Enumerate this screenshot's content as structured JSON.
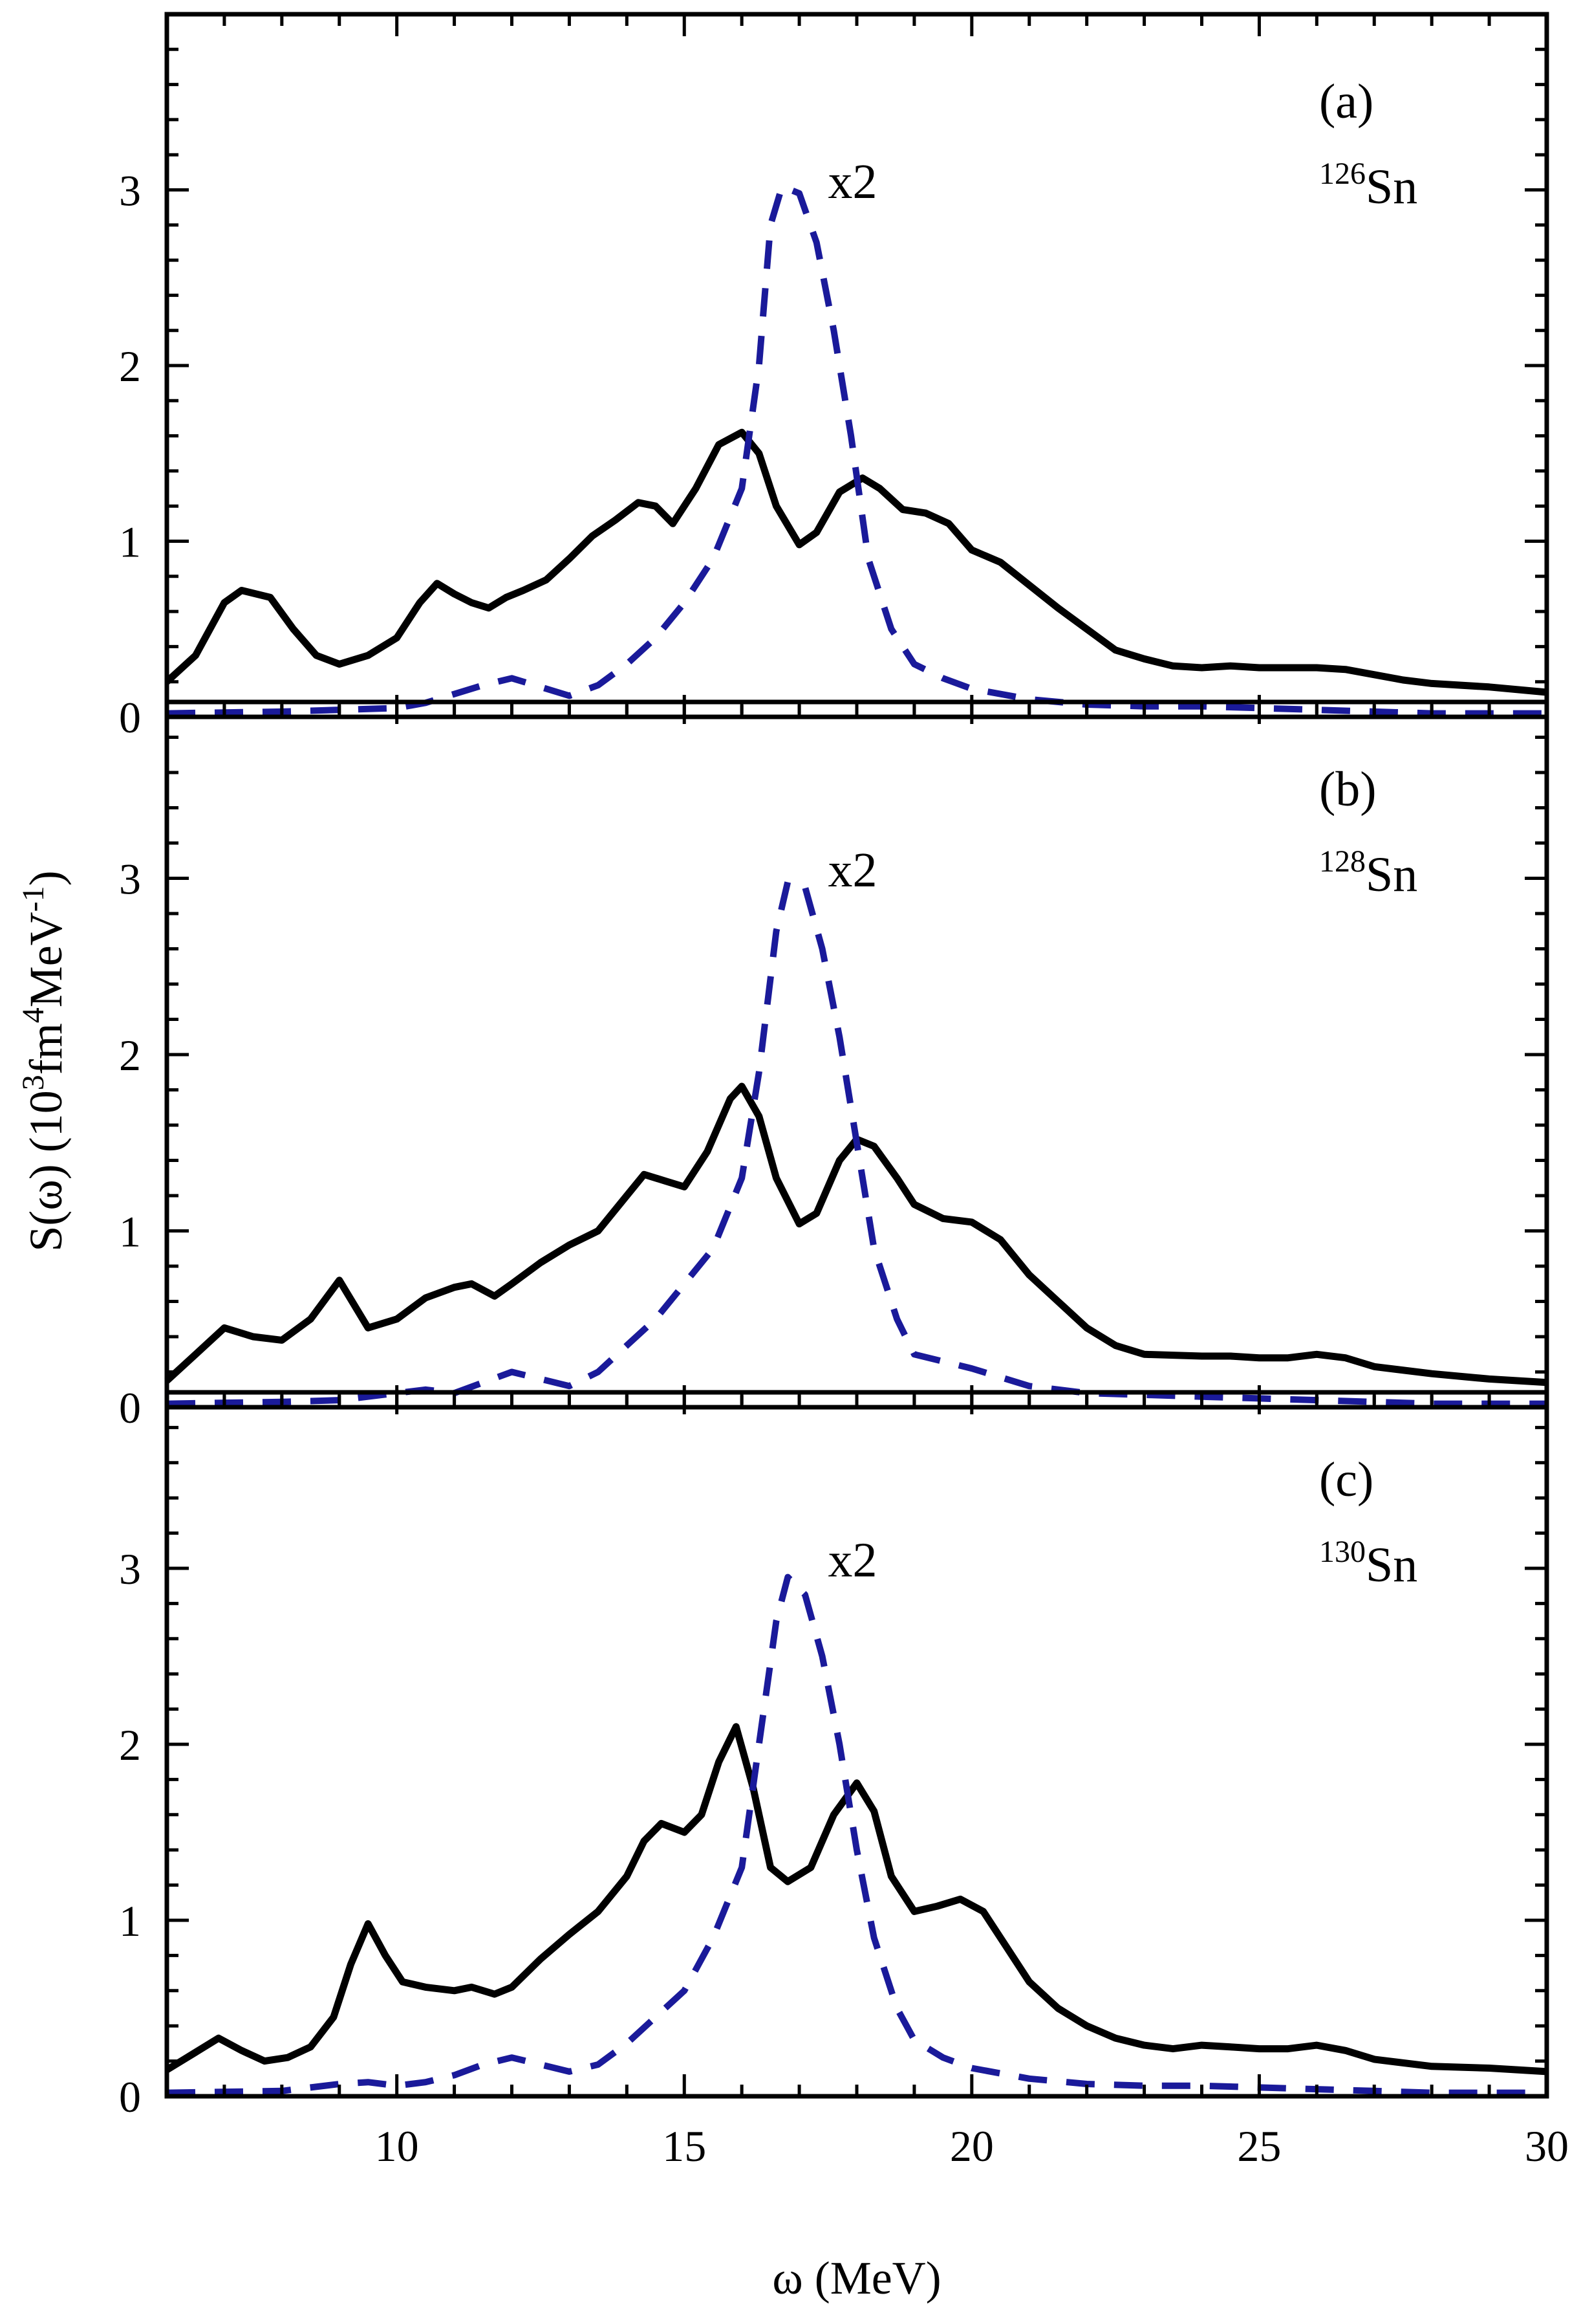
{
  "chart_data": {
    "type": "line",
    "xlabel": "ω (MeV)",
    "ylabel": "S(ω) (10³fm⁴MeV⁻¹)",
    "ylabel_parts": {
      "prefix": "S(ω) (10",
      "sup1": "3",
      "mid": "fm",
      "sup2": "4",
      "mid2": "MeV",
      "sup3": "-1",
      "suffix": ")"
    },
    "xlim": [
      6,
      30
    ],
    "ylim": [
      0,
      4
    ],
    "x_ticks": [
      10,
      15,
      20,
      25,
      30
    ],
    "y_ticks": [
      0,
      1,
      2,
      3
    ],
    "colors": {
      "solid": "#000000",
      "dashed": "#1a1a9a"
    },
    "panels": [
      {
        "label": "(a)",
        "mass": "126",
        "element": "Sn",
        "annotation": "x2",
        "annotation_pos": [
          17.5,
          3.05
        ],
        "series": [
          {
            "style": "solid",
            "x": [
              6,
              6.5,
              7,
              7.3,
              7.8,
              8.2,
              8.6,
              9,
              9.5,
              10,
              10.4,
              10.7,
              11,
              11.3,
              11.6,
              11.9,
              12.2,
              12.6,
              13,
              13.4,
              13.8,
              14.2,
              14.5,
              14.8,
              15.2,
              15.6,
              16,
              16.3,
              16.6,
              17,
              17.3,
              17.7,
              18.1,
              18.4,
              18.8,
              19.2,
              19.6,
              20,
              20.5,
              21,
              21.5,
              22,
              22.5,
              23,
              23.5,
              24,
              24.5,
              25,
              26,
              26.5,
              27,
              27.5,
              28,
              29,
              30
            ],
            "y": [
              0.2,
              0.35,
              0.65,
              0.72,
              0.68,
              0.5,
              0.35,
              0.3,
              0.35,
              0.45,
              0.65,
              0.76,
              0.7,
              0.65,
              0.62,
              0.68,
              0.72,
              0.78,
              0.9,
              1.03,
              1.12,
              1.22,
              1.2,
              1.1,
              1.3,
              1.55,
              1.62,
              1.5,
              1.2,
              0.98,
              1.05,
              1.28,
              1.36,
              1.3,
              1.18,
              1.16,
              1.1,
              0.95,
              0.88,
              0.75,
              0.62,
              0.5,
              0.38,
              0.33,
              0.29,
              0.28,
              0.29,
              0.28,
              0.28,
              0.27,
              0.24,
              0.21,
              0.19,
              0.17,
              0.14
            ]
          },
          {
            "style": "dashed",
            "x": [
              6,
              8,
              9,
              10,
              10.5,
              11,
              11.5,
              12,
              12.5,
              13,
              13.5,
              14,
              14.5,
              15,
              15.5,
              16,
              16.3,
              16.5,
              16.7,
              17,
              17.3,
              17.6,
              17.9,
              18.2,
              18.6,
              19,
              19.5,
              20,
              21,
              22,
              23,
              24,
              25,
              26,
              27,
              28,
              30
            ],
            "y": [
              0.02,
              0.03,
              0.04,
              0.05,
              0.08,
              0.13,
              0.18,
              0.22,
              0.17,
              0.12,
              0.18,
              0.3,
              0.45,
              0.65,
              0.9,
              1.3,
              2.0,
              2.8,
              3.02,
              2.98,
              2.7,
              2.2,
              1.6,
              0.9,
              0.5,
              0.3,
              0.22,
              0.16,
              0.1,
              0.07,
              0.06,
              0.06,
              0.05,
              0.04,
              0.03,
              0.02,
              0.02
            ]
          }
        ]
      },
      {
        "label": "(b)",
        "mass": "128",
        "element": "Sn",
        "annotation": "x2",
        "annotation_pos": [
          17.5,
          3.05
        ],
        "series": [
          {
            "style": "solid",
            "x": [
              6,
              6.5,
              7,
              7.5,
              8,
              8.5,
              9,
              9.5,
              10,
              10.5,
              11,
              11.3,
              11.7,
              12,
              12.5,
              13,
              13.5,
              14,
              14.3,
              14.7,
              15,
              15.4,
              15.8,
              16,
              16.3,
              16.6,
              17,
              17.3,
              17.7,
              18,
              18.3,
              18.7,
              19,
              19.5,
              20,
              20.5,
              21,
              21.5,
              22,
              22.5,
              23,
              24,
              24.5,
              25,
              25.5,
              26,
              26.5,
              27,
              28,
              29,
              30
            ],
            "y": [
              0.15,
              0.3,
              0.45,
              0.4,
              0.38,
              0.5,
              0.72,
              0.45,
              0.5,
              0.62,
              0.68,
              0.7,
              0.63,
              0.7,
              0.82,
              0.92,
              1.0,
              1.2,
              1.32,
              1.28,
              1.25,
              1.45,
              1.75,
              1.82,
              1.65,
              1.3,
              1.04,
              1.1,
              1.4,
              1.52,
              1.48,
              1.3,
              1.15,
              1.07,
              1.05,
              0.95,
              0.75,
              0.6,
              0.45,
              0.35,
              0.3,
              0.29,
              0.29,
              0.28,
              0.28,
              0.3,
              0.28,
              0.23,
              0.19,
              0.16,
              0.14
            ]
          },
          {
            "style": "dashed",
            "x": [
              6,
              8,
              9,
              10,
              10.5,
              11,
              11.5,
              12,
              12.5,
              13,
              13.5,
              14,
              14.5,
              15,
              15.5,
              16,
              16.3,
              16.6,
              16.8,
              17.1,
              17.4,
              17.7,
              18,
              18.3,
              18.7,
              19,
              19.5,
              20,
              21,
              22,
              23,
              24,
              25,
              26,
              27,
              28,
              30
            ],
            "y": [
              0.02,
              0.03,
              0.04,
              0.08,
              0.1,
              0.08,
              0.14,
              0.2,
              0.16,
              0.12,
              0.2,
              0.35,
              0.5,
              0.7,
              0.9,
              1.3,
              1.9,
              2.7,
              2.98,
              2.95,
              2.6,
              2.1,
              1.5,
              0.9,
              0.5,
              0.3,
              0.26,
              0.22,
              0.12,
              0.08,
              0.07,
              0.06,
              0.05,
              0.04,
              0.03,
              0.02,
              0.02
            ]
          }
        ]
      },
      {
        "label": "(c)",
        "mass": "130",
        "element": "Sn",
        "annotation": "x2",
        "annotation_pos": [
          17.5,
          3.05
        ],
        "series": [
          {
            "style": "solid",
            "x": [
              6,
              6.5,
              6.9,
              7.3,
              7.7,
              8.1,
              8.5,
              8.9,
              9.2,
              9.5,
              9.8,
              10.1,
              10.5,
              11,
              11.3,
              11.7,
              12,
              12.5,
              13,
              13.5,
              14,
              14.3,
              14.6,
              15,
              15.3,
              15.6,
              15.9,
              16.2,
              16.5,
              16.8,
              17.2,
              17.6,
              18,
              18.3,
              18.6,
              19,
              19.4,
              19.8,
              20.2,
              20.6,
              21,
              21.5,
              22,
              22.5,
              23,
              23.5,
              24,
              24.5,
              25,
              25.5,
              26,
              26.5,
              27,
              28,
              29,
              30
            ],
            "y": [
              0.15,
              0.25,
              0.33,
              0.26,
              0.2,
              0.22,
              0.28,
              0.45,
              0.75,
              0.98,
              0.8,
              0.65,
              0.62,
              0.6,
              0.62,
              0.58,
              0.62,
              0.78,
              0.92,
              1.05,
              1.25,
              1.45,
              1.55,
              1.5,
              1.6,
              1.9,
              2.1,
              1.75,
              1.3,
              1.22,
              1.3,
              1.6,
              1.78,
              1.62,
              1.25,
              1.05,
              1.08,
              1.12,
              1.05,
              0.85,
              0.65,
              0.5,
              0.4,
              0.33,
              0.29,
              0.27,
              0.29,
              0.28,
              0.27,
              0.27,
              0.29,
              0.26,
              0.21,
              0.17,
              0.16,
              0.14
            ]
          },
          {
            "style": "dashed",
            "x": [
              6,
              8,
              9,
              9.5,
              10,
              10.5,
              11,
              11.5,
              12,
              12.5,
              13,
              13.5,
              14,
              14.5,
              15,
              15.5,
              16,
              16.3,
              16.6,
              16.8,
              17.1,
              17.4,
              17.7,
              18,
              18.3,
              18.7,
              19,
              19.5,
              20,
              21,
              22,
              23,
              24,
              25,
              26,
              27,
              28,
              30
            ],
            "y": [
              0.02,
              0.03,
              0.07,
              0.08,
              0.06,
              0.08,
              0.12,
              0.18,
              0.22,
              0.18,
              0.14,
              0.18,
              0.3,
              0.45,
              0.6,
              0.9,
              1.3,
              2.0,
              2.7,
              2.95,
              2.85,
              2.5,
              2.0,
              1.4,
              0.9,
              0.5,
              0.32,
              0.22,
              0.16,
              0.1,
              0.07,
              0.06,
              0.06,
              0.05,
              0.04,
              0.03,
              0.02,
              0.02
            ]
          }
        ]
      }
    ]
  }
}
